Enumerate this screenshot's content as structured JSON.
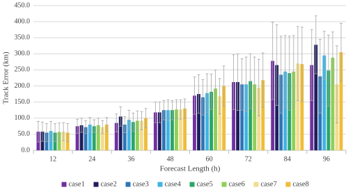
{
  "chart_data": {
    "type": "bar",
    "y_label": "Track Error (km)",
    "x_label": "Forecast Length (h)",
    "categories": [
      "12",
      "24",
      "36",
      "48",
      "60",
      "72",
      "84",
      "96"
    ],
    "ylim": [
      0,
      450
    ],
    "yticks": [
      {
        "value": 0,
        "label": "0.0"
      },
      {
        "value": 50,
        "label": "50.0"
      },
      {
        "value": 100,
        "label": "100.0"
      },
      {
        "value": 150,
        "label": "150.0"
      },
      {
        "value": 200,
        "label": "200.0"
      },
      {
        "value": 250,
        "label": "250.0"
      },
      {
        "value": 300,
        "label": "300.0"
      },
      {
        "value": 350,
        "label": "350.0"
      },
      {
        "value": 400,
        "label": "400.0"
      },
      {
        "value": 450,
        "label": "450.0"
      }
    ],
    "grid": true,
    "legend": "bottom",
    "series": [
      {
        "name": "case1",
        "color": "#7030a0",
        "values": [
          58,
          75,
          85,
          118,
          170,
          212,
          278,
          265
        ],
        "errors": [
          32,
          22,
          28,
          32,
          58,
          85,
          120,
          110
        ]
      },
      {
        "name": "case2",
        "color": "#1f1f5c",
        "values": [
          58,
          78,
          105,
          118,
          175,
          212,
          265,
          328
        ],
        "errors": [
          30,
          22,
          30,
          32,
          60,
          88,
          125,
          90
        ]
      },
      {
        "name": "case3",
        "color": "#2e75b6",
        "values": [
          55,
          72,
          80,
          125,
          165,
          205,
          235,
          230
        ],
        "errors": [
          28,
          20,
          25,
          30,
          55,
          80,
          120,
          115
        ]
      },
      {
        "name": "case4",
        "color": "#3fb3e3",
        "values": [
          60,
          80,
          95,
          125,
          178,
          205,
          245,
          295
        ],
        "errors": [
          30,
          22,
          30,
          32,
          60,
          85,
          112,
          75
        ]
      },
      {
        "name": "case5",
        "color": "#2aa56a",
        "values": [
          55,
          75,
          88,
          125,
          182,
          215,
          240,
          248
        ],
        "errors": [
          28,
          20,
          28,
          30,
          55,
          85,
          115,
          110
        ]
      },
      {
        "name": "case6",
        "color": "#8fcf55",
        "values": [
          57,
          78,
          92,
          127,
          192,
          205,
          245,
          288
        ],
        "errors": [
          28,
          22,
          30,
          30,
          58,
          85,
          112,
          80
        ]
      },
      {
        "name": "case7",
        "color": "#f2dc8e",
        "values": [
          58,
          72,
          92,
          127,
          168,
          195,
          270,
          205
        ],
        "errors": [
          28,
          20,
          28,
          30,
          55,
          88,
          115,
          120
        ]
      },
      {
        "name": "case8",
        "color": "#efbd3a",
        "values": [
          55,
          80,
          100,
          130,
          200,
          218,
          268,
          305
        ],
        "errors": [
          28,
          22,
          30,
          30,
          62,
          85,
          115,
          90
        ]
      }
    ]
  }
}
